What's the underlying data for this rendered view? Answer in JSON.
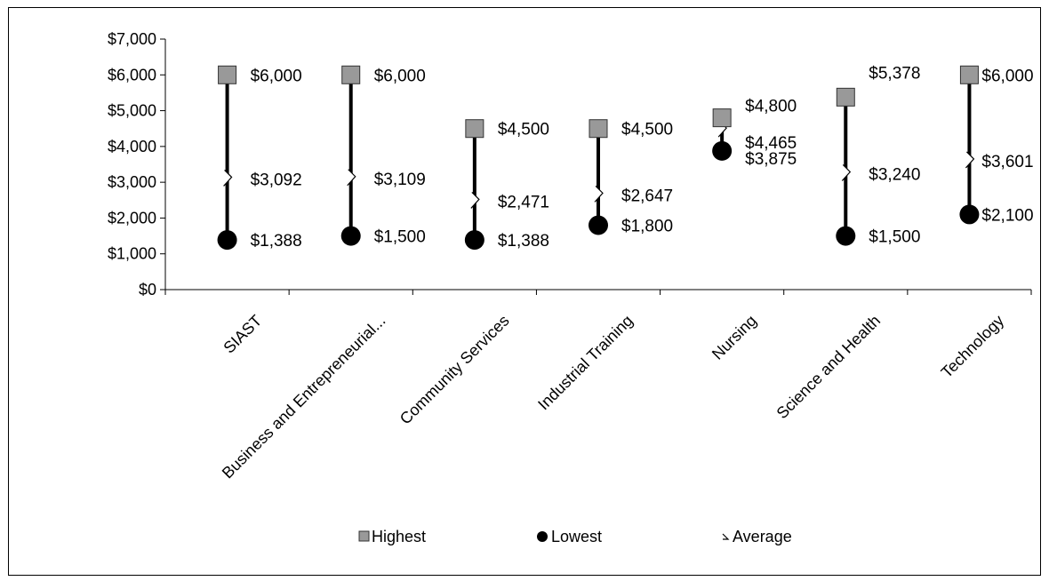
{
  "chart_data": {
    "type": "high-low-average",
    "categories": [
      "SIAST",
      "Business and Entrepreneurial...",
      "Community Services",
      "Industrial Training",
      "Nursing",
      "Science and Health",
      "Technology"
    ],
    "series": [
      {
        "name": "Highest",
        "values": [
          6000,
          6000,
          4500,
          4500,
          4800,
          5378,
          6000
        ],
        "labels": [
          "$6,000",
          "$6,000",
          "$4,500",
          "$4,500",
          "$4,800",
          "$5,378",
          "$6,000"
        ]
      },
      {
        "name": "Lowest",
        "values": [
          1388,
          1500,
          1388,
          1800,
          3875,
          1500,
          2100
        ],
        "labels": [
          "$1,388",
          "$1,500",
          "$1,388",
          "$1,800",
          "$3,875",
          "$1,500",
          "$2,100"
        ]
      },
      {
        "name": "Average",
        "values": [
          3092,
          3109,
          2471,
          2647,
          4465,
          3240,
          3601
        ],
        "labels": [
          "$3,092",
          "$3,109",
          "$2,471",
          "$2,647",
          "$4,465",
          "$3,240",
          "$3,601"
        ]
      }
    ],
    "y_ticks": [
      "$0",
      "$1,000",
      "$2,000",
      "$3,000",
      "$4,000",
      "$5,000",
      "$6,000",
      "$7,000"
    ],
    "ylim": [
      0,
      7000
    ],
    "grid": false,
    "legend_position": "bottom",
    "colors": {
      "highest": "#999999",
      "lowest": "#000000",
      "average": "#ffffff",
      "line": "#000000"
    }
  }
}
